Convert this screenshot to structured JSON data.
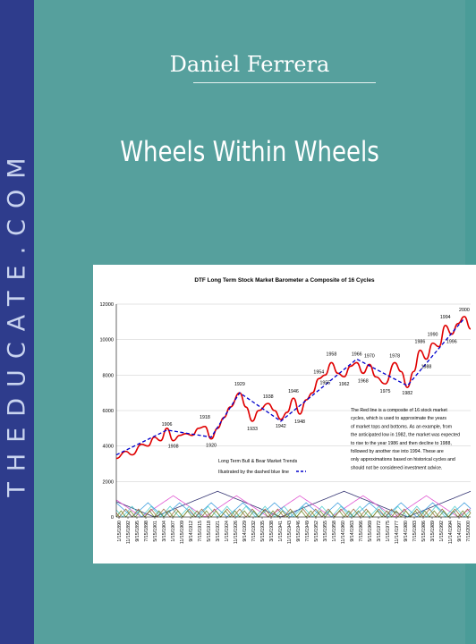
{
  "side_text": "THEDUCATE.COM",
  "author": "Daniel Ferrera",
  "title": "Wheels Within Wheels",
  "colors": {
    "sidebar": "#2e3c8c",
    "background": "#56a09d",
    "red_line": "#e00000",
    "trend_line": "#0000cc"
  },
  "chart_data": {
    "type": "line",
    "title": "DTF Long Term Stock Market Barometer a Composite of 16 Cycles",
    "ylim": [
      0,
      12000
    ],
    "yticks": [
      0,
      2000,
      4000,
      6000,
      8000,
      10000,
      12000
    ],
    "xlim": [
      1890,
      2002
    ],
    "x_tick_labels": [
      "1/15/1890",
      "11/15/1892",
      "9/15/1895",
      "7/15/1898",
      "5/15/1901",
      "3/15/1904",
      "1/15/1907",
      "11/15/1909",
      "9/14/1912",
      "7/15/1915",
      "5/15/1918",
      "3/15/1921",
      "1/15/1924",
      "11/15/1926",
      "9/14/1929",
      "7/15/1932",
      "5/15/1935",
      "3/15/1938",
      "1/15/1941",
      "11/15/1943",
      "9/15/1946",
      "7/15/1949",
      "5/15/1952",
      "3/15/1955",
      "1/15/1958",
      "11/14/1960",
      "9/14/1963",
      "7/15/1966",
      "5/15/1969",
      "3/15/1972",
      "1/15/1975",
      "11/14/1977",
      "9/14/1980",
      "7/15/1983",
      "5/15/1986",
      "3/15/1989",
      "1/15/1992",
      "11/14/1994",
      "9/14/1997",
      "7/15/2000"
    ],
    "series": [
      {
        "name": "Composite of 16 cycles",
        "color": "#e00000",
        "x": [
          1890,
          1893,
          1895,
          1898,
          1900,
          1902,
          1904,
          1906,
          1908,
          1910,
          1912,
          1914,
          1916,
          1918,
          1920,
          1922,
          1924,
          1926,
          1929,
          1931,
          1933,
          1935,
          1938,
          1940,
          1942,
          1944,
          1946,
          1948,
          1950,
          1952,
          1954,
          1956,
          1958,
          1960,
          1962,
          1964,
          1966,
          1968,
          1970,
          1972,
          1975,
          1978,
          1980,
          1982,
          1984,
          1986,
          1988,
          1990,
          1992,
          1994,
          1996,
          1998,
          2000,
          2002
        ],
        "y": [
          3300,
          3700,
          3500,
          4100,
          4000,
          4500,
          4300,
          5000,
          4300,
          4600,
          4700,
          4600,
          5000,
          5100,
          4400,
          5000,
          5600,
          6200,
          7000,
          6200,
          5400,
          6000,
          6400,
          6000,
          5500,
          5900,
          6700,
          5800,
          6600,
          7000,
          7800,
          8000,
          8700,
          8100,
          7900,
          8500,
          8700,
          8100,
          8600,
          7900,
          7500,
          8700,
          8200,
          7300,
          8200,
          9400,
          8900,
          9800,
          9600,
          10800,
          10300,
          10900,
          11300,
          10600
        ]
      },
      {
        "name": "Long Term Bull & Bear Market Trends",
        "color": "#0000cc",
        "x": [
          1890,
          1906,
          1920,
          1929,
          1942,
          1966,
          1982,
          2000
        ],
        "y": [
          3500,
          4900,
          4500,
          7000,
          5400,
          8900,
          7400,
          11200
        ]
      }
    ],
    "annotations": [
      {
        "label": "1906",
        "x": 1906,
        "y": 5150
      },
      {
        "label": "1908",
        "x": 1908,
        "y": 3900
      },
      {
        "label": "1918",
        "x": 1918,
        "y": 5550
      },
      {
        "label": "1920",
        "x": 1920,
        "y": 3950
      },
      {
        "label": "1929",
        "x": 1929,
        "y": 7400
      },
      {
        "label": "1933",
        "x": 1933,
        "y": 4900
      },
      {
        "label": "1938",
        "x": 1938,
        "y": 6700
      },
      {
        "label": "1942",
        "x": 1942,
        "y": 5050
      },
      {
        "label": "1946",
        "x": 1946,
        "y": 7000
      },
      {
        "label": "1948",
        "x": 1948,
        "y": 5300
      },
      {
        "label": "1954",
        "x": 1954,
        "y": 8100
      },
      {
        "label": "1955",
        "x": 1956,
        "y": 7500
      },
      {
        "label": "1958",
        "x": 1958,
        "y": 9100
      },
      {
        "label": "1962",
        "x": 1962,
        "y": 7400
      },
      {
        "label": "1966",
        "x": 1966,
        "y": 9100
      },
      {
        "label": "1968",
        "x": 1968,
        "y": 7600
      },
      {
        "label": "1970",
        "x": 1970,
        "y": 9000
      },
      {
        "label": "1975",
        "x": 1975,
        "y": 7000
      },
      {
        "label": "1978",
        "x": 1978,
        "y": 9000
      },
      {
        "label": "1982",
        "x": 1982,
        "y": 6900
      },
      {
        "label": "1986",
        "x": 1986,
        "y": 9800
      },
      {
        "label": "1988",
        "x": 1988,
        "y": 8400
      },
      {
        "label": "1990",
        "x": 1990,
        "y": 10200
      },
      {
        "label": "1994",
        "x": 1994,
        "y": 11200
      },
      {
        "label": "1996",
        "x": 1996,
        "y": 9800
      },
      {
        "label": "2000",
        "x": 2000,
        "y": 11600
      }
    ],
    "component_cycles": [
      {
        "color": "#222266",
        "period": 40,
        "phase": 1902,
        "amp": 1450,
        "base": 0
      },
      {
        "color": "#dd44cc",
        "period": 20,
        "phase": 1918,
        "amp": 1200,
        "base": 0
      },
      {
        "color": "#3399dd",
        "period": 10,
        "phase": 1895,
        "amp": 800,
        "base": 0
      },
      {
        "color": "#44cccc",
        "period": 6,
        "phase": 1892,
        "amp": 600,
        "base": 0
      },
      {
        "color": "#996633",
        "period": 4,
        "phase": 1891,
        "amp": 450,
        "base": 0
      },
      {
        "color": "#668822",
        "period": 3,
        "phase": 1890,
        "amp": 350,
        "base": 0
      }
    ],
    "legend_title": "Long Term Bull & Bear Market Trends",
    "legend_entry": "Illustrated by the dashed blue line",
    "note": "The Red line is a composite of 16 stock market cycles, which is used to approximate the years of market tops and bottoms. As an example, from the anticipated low in 1982, the market was expected to rise to the year 1986 and then decline to 1988, followed by another rise into 1994. These are only approximations based on historical cycles and should not be considered investment advice.",
    "note_lines": [
      "The Red line is a composite of 16 stock market",
      "cycles, which is used to approximate the years",
      "of market tops and bottoms. As an example, from",
      "the anticipated low in 1982, the market was expected",
      "to rise to the year 1986 and then decline to 1988,",
      "followed by another rise into 1994. These are",
      "only approximations based on historical cycles and",
      "should not be considered investment advice."
    ]
  }
}
